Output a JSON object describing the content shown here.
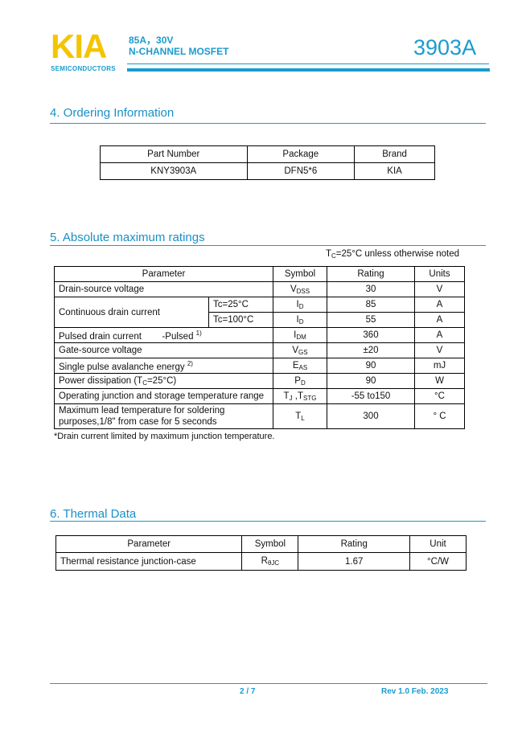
{
  "header": {
    "logo": "KIA",
    "logo_sub": "SEMICONDUCTORS",
    "line1": "85A，30V",
    "line2": "N-CHANNEL MOSFET",
    "part": "3903A",
    "colors": {
      "accent": "#1a9bd0",
      "logo": "#f5c400"
    }
  },
  "ordering": {
    "title": "4.  Ordering Information",
    "headers": [
      "Part Number",
      "Package",
      "Brand"
    ],
    "row": [
      "KNY3903A",
      "DFN5*6",
      "KIA"
    ]
  },
  "abs": {
    "title": "5. Absolute maximum ratings",
    "condition": {
      "main": "T",
      "sub": "C",
      "rest": "=25°C unless otherwise noted"
    },
    "headers": [
      "Parameter",
      "Symbol",
      "Rating",
      "Units"
    ],
    "rows": [
      {
        "param": "Drain-source voltage",
        "sym": "V",
        "symsub": "DSS",
        "rating": "30",
        "unit": "V"
      },
      {
        "param": "Continuous drain current",
        "cond": "Tc=25°C",
        "sym": "I",
        "symsub": "D",
        "rating": "85",
        "unit": "A"
      },
      {
        "cond": "Tc=100°C",
        "sym": "I",
        "symsub": "D",
        "rating": "55",
        "unit": "A"
      },
      {
        "param": "Pulsed drain current        -Pulsed",
        "sup": "1)",
        "sym": "I",
        "symsub": "DM",
        "rating": "360",
        "unit": "A"
      },
      {
        "param": "Gate-source voltage",
        "sym": "V",
        "symsub": "GS",
        "rating": "±20",
        "unit": "V"
      },
      {
        "param": "Single pulse avalanche energy",
        "sup": "2)",
        "sym": "E",
        "symsub": "AS",
        "rating": "90",
        "unit": "mJ"
      },
      {
        "param": "Power dissipation (T",
        "psub": "C",
        "param2": "=25°C)",
        "sym": "P",
        "symsub": "D",
        "rating": "90",
        "unit": "W"
      },
      {
        "param": "Operating junction and storage temperature range",
        "sym": "T",
        "symsub": "J",
        "sym2": " ,T",
        "symsub2": "STG",
        "rating": "-55 to150",
        "unit": "°C"
      },
      {
        "param": "Maximum lead temperature for soldering",
        "param2": "purposes,1/8\" from case for 5 seconds",
        "sym": "T",
        "symsub": "L",
        "rating": "300",
        "unit": "° C"
      }
    ],
    "footnote": "*Drain current limited by maximum junction temperature."
  },
  "thermal": {
    "title": "6. Thermal Data",
    "headers": [
      "Parameter",
      "Symbol",
      "Rating",
      "Unit"
    ],
    "row": {
      "param": "Thermal resistance junction-case",
      "sym": "R",
      "symsub": "θJC",
      "rating": "1.67",
      "unit": "°C/W"
    }
  },
  "footer": {
    "page": "2 / 7",
    "rev": "Rev 1.0 Feb. 2023"
  }
}
